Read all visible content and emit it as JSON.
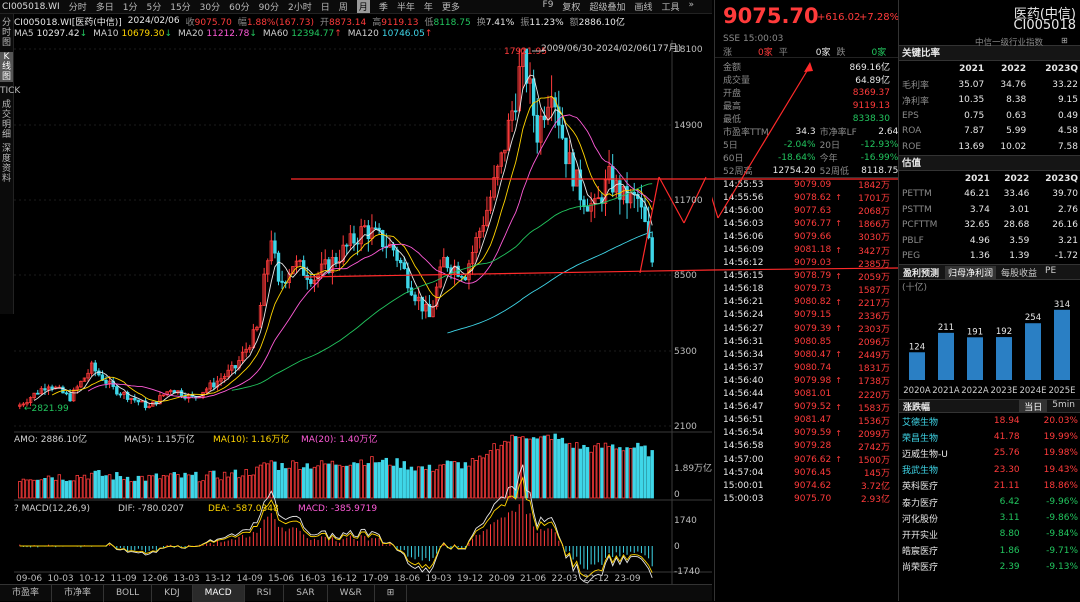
{
  "toolbar": {
    "code": "CI005018.WI",
    "periods": [
      "分时",
      "多日",
      "1分",
      "5分",
      "15分",
      "30分",
      "60分",
      "90分",
      "2小时",
      "日",
      "周",
      "月",
      "季",
      "半年",
      "年",
      "更多"
    ],
    "active": "月",
    "right_items": [
      "F9",
      "复权",
      "超级叠加",
      "画线",
      "工具",
      "»"
    ]
  },
  "leftbar": {
    "tabs": [
      "分时图",
      "K线图",
      "TICK",
      "成交明细",
      "深度资料"
    ],
    "active": "K线图"
  },
  "info": {
    "code": "CI005018.WI[医药(中信)]",
    "date": "2024/02/06",
    "close_label": "收",
    "close": "9075.70",
    "chg_label": "幅",
    "chg": "1.88%(167.73)",
    "open_label": "开",
    "open": "8873.14",
    "high_label": "高",
    "high": "9119.13",
    "low_label": "低",
    "low": "8118.75",
    "turnover_label": "换",
    "turnover": "7.41%",
    "amp_label": "振",
    "amp": "11.23%",
    "amount_label": "额",
    "amount": "2886.10亿"
  },
  "ma": [
    {
      "name": "MA5",
      "value": "10297.42",
      "arrow": "↓",
      "color": "#e8e8e8"
    },
    {
      "name": "MA10",
      "value": "10679.30",
      "arrow": "↓",
      "color": "#ffd400"
    },
    {
      "name": "MA20",
      "value": "11212.78",
      "arrow": "↓",
      "color": "#ff5bd8"
    },
    {
      "name": "MA60",
      "value": "12394.77",
      "arrow": "↑",
      "color": "#22c55e"
    },
    {
      "name": "MA120",
      "value": "10746.05",
      "arrow": "↑",
      "color": "#3fd6e8"
    }
  ],
  "chart_range": "2009/06/30-2024/02/06(177月)",
  "price_axis": [
    "18100",
    "14900",
    "11700",
    "8500",
    "5300",
    "2100"
  ],
  "high_annot": "17921.95",
  "low_annot": "2821.99",
  "amo": {
    "text": "AMO: 2886.10亿",
    "ma5": "MA(5): 1.15万亿",
    "ma10": "MA(10): 1.16万亿",
    "ma20": "MA(20): 1.40万亿",
    "axis": [
      "1.89万亿",
      "0"
    ]
  },
  "macd": {
    "text": "MACD(12,26,9)",
    "dif": "DIF: -780.0207",
    "dea": "DEA: -587.0348",
    "macd": "MACD: -385.9719",
    "axis": [
      "1740",
      "0",
      "-1740"
    ]
  },
  "date_axis": [
    "09-06",
    "10-03",
    "10-12",
    "11-09",
    "12-06",
    "13-03",
    "13-12",
    "14-09",
    "15-06",
    "16-03",
    "16-12",
    "17-09",
    "18-06",
    "19-03",
    "19-12",
    "20-09",
    "21-06",
    "22-03",
    "22-12",
    "23-09"
  ],
  "bottom_tabs": [
    "市盈率",
    "市净率",
    "BOLL",
    "KDJ",
    "MACD",
    "RSI",
    "SAR",
    "W&R",
    "⊞"
  ],
  "bottom_active": "MACD",
  "quote": {
    "price": "9075.70",
    "change": "+616.02",
    "pct": "+7.28%",
    "name": "医药(中信)",
    "code": "CI005018",
    "sse": "SSE 15:00:03",
    "industry": "中信一级行业指数",
    "updown": {
      "up_label": "涨",
      "up": "0家",
      "flat_label": "平",
      "flat": "0家",
      "down_label": "跌",
      "down": "0家"
    },
    "stats": [
      [
        "金额",
        "869.16亿"
      ],
      [
        "成交量",
        "64.89亿"
      ],
      [
        "开盘",
        "8369.37"
      ],
      [
        "最高",
        "9119.13"
      ],
      [
        "最低",
        "8338.30"
      ]
    ],
    "pe_row": [
      "市盈率TTM",
      "34.3",
      "市净率LF",
      "2.64"
    ],
    "ret_rows": [
      [
        "5日",
        "-2.04%",
        "20日",
        "-12.93%"
      ],
      [
        "60日",
        "-18.64%",
        "今年",
        "-16.99%"
      ],
      [
        "52周高",
        "12754.20",
        "52周低",
        "8118.75"
      ]
    ],
    "ticks": [
      [
        "14:55:53",
        "9079.09",
        "1842万"
      ],
      [
        "14:55:56",
        "9078.62",
        "1701万"
      ],
      [
        "14:56:00",
        "9077.63",
        "2068万"
      ],
      [
        "14:56:03",
        "9076.77",
        "1866万"
      ],
      [
        "14:56:06",
        "9079.66",
        "3030万"
      ],
      [
        "14:56:09",
        "9081.18",
        "3427万"
      ],
      [
        "14:56:12",
        "9079.03",
        "2385万"
      ],
      [
        "14:56:15",
        "9078.79",
        "2059万"
      ],
      [
        "14:56:18",
        "9079.73",
        "1587万"
      ],
      [
        "14:56:21",
        "9080.82",
        "2217万"
      ],
      [
        "14:56:24",
        "9079.15",
        "2336万"
      ],
      [
        "14:56:27",
        "9079.39",
        "2303万"
      ],
      [
        "14:56:31",
        "9080.85",
        "2096万"
      ],
      [
        "14:56:34",
        "9080.47",
        "2449万"
      ],
      [
        "14:56:37",
        "9080.74",
        "1831万"
      ],
      [
        "14:56:40",
        "9079.98",
        "1738万"
      ],
      [
        "14:56:44",
        "9081.01",
        "2220万"
      ],
      [
        "14:56:47",
        "9079.52",
        "1583万"
      ],
      [
        "14:56:51",
        "9081.47",
        "1536万"
      ],
      [
        "14:56:54",
        "9079.59",
        "2099万"
      ],
      [
        "14:56:58",
        "9079.28",
        "2742万"
      ],
      [
        "14:57:00",
        "9076.62",
        "1500万"
      ],
      [
        "14:57:04",
        "9076.45",
        "145万"
      ],
      [
        "15:00:01",
        "9074.62",
        "3.72亿"
      ],
      [
        "15:00:03",
        "9075.70",
        "2.93亿"
      ]
    ]
  },
  "key_ratios": {
    "title": "关键比率",
    "years": [
      "2021",
      "2022",
      "2023Q"
    ],
    "rows": [
      [
        "毛利率",
        "35.07",
        "34.76",
        "33.22"
      ],
      [
        "净利率",
        "10.35",
        "8.38",
        "9.15"
      ],
      [
        "EPS",
        "0.75",
        "0.63",
        "0.49"
      ],
      [
        "ROA",
        "7.87",
        "5.99",
        "4.58"
      ],
      [
        "ROE",
        "13.69",
        "10.02",
        "7.58"
      ]
    ]
  },
  "valuation": {
    "title": "估值",
    "years": [
      "2021",
      "2022",
      "2023Q"
    ],
    "rows": [
      [
        "PETTM",
        "46.21",
        "33.46",
        "39.70"
      ],
      [
        "PSTTM",
        "3.74",
        "3.01",
        "2.76"
      ],
      [
        "PCFTTM",
        "32.65",
        "28.68",
        "26.16"
      ],
      [
        "PBLF",
        "4.96",
        "3.59",
        "3.21"
      ],
      [
        "PEG",
        "1.36",
        "1.39",
        "-1.72"
      ]
    ]
  },
  "forecast": {
    "title": "盈利预测",
    "tabs": [
      "归母净利润",
      "每股收益",
      "PE"
    ],
    "unit": "(十亿)",
    "chart_data": {
      "type": "bar",
      "categories": [
        "2020A",
        "2021A",
        "2022A",
        "2023E",
        "2024E",
        "2025E"
      ],
      "values": [
        124,
        211,
        191,
        192,
        254,
        314
      ]
    }
  },
  "movers": {
    "title": "涨跌幅",
    "tabs": [
      "当日",
      "5min"
    ],
    "rows": [
      [
        "艾德生物",
        "18.94",
        "20.03%",
        "up",
        true
      ],
      [
        "荣昌生物",
        "41.78",
        "19.99%",
        "up",
        true
      ],
      [
        "迈威生物-U",
        "25.76",
        "19.98%",
        "up",
        false
      ],
      [
        "我武生物",
        "23.30",
        "19.43%",
        "up",
        true
      ],
      [
        "英科医疗",
        "21.11",
        "18.86%",
        "up",
        false
      ],
      [
        "泰力医疗",
        "6.42",
        "-9.96%",
        "down",
        false
      ],
      [
        "河化股份",
        "3.11",
        "-9.86%",
        "down",
        false
      ],
      [
        "开开实业",
        "8.80",
        "-9.84%",
        "down",
        false
      ],
      [
        "皓宸医疗",
        "1.86",
        "-9.71%",
        "down",
        false
      ],
      [
        "尚荣医疗",
        "2.39",
        "-9.13%",
        "down",
        false
      ]
    ]
  }
}
